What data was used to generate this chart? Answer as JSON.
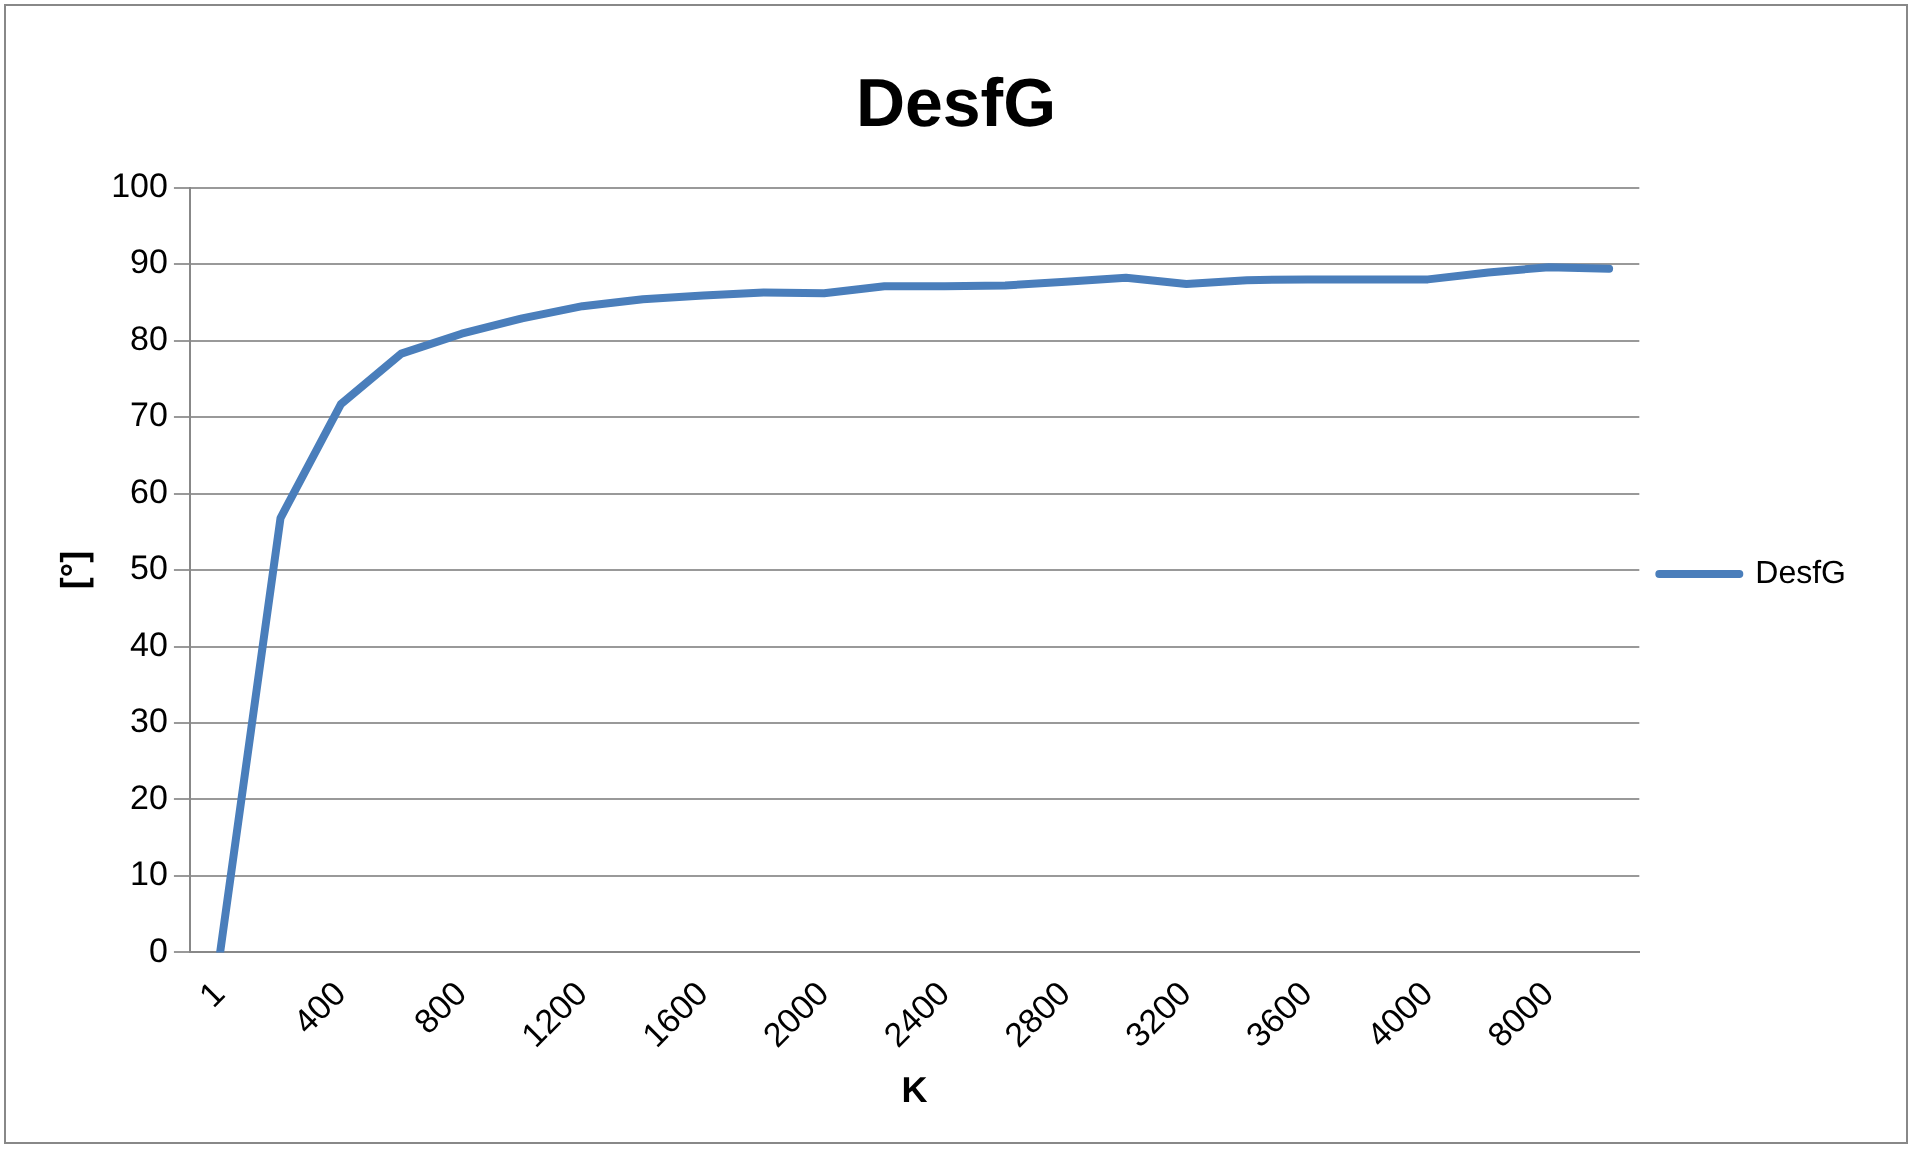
{
  "chart_data": {
    "type": "line",
    "title": "DesfG",
    "xlabel": "K",
    "ylabel": "[°]",
    "categories": [
      "1",
      null,
      "400",
      null,
      "800",
      null,
      "1200",
      null,
      "1600",
      null,
      "2000",
      null,
      "2400",
      null,
      "2800",
      null,
      "3200",
      null,
      "3600",
      null,
      "4000",
      null,
      "8000",
      null
    ],
    "series": [
      {
        "name": "DesfG",
        "color": "#4a7ebb",
        "values": [
          0,
          56.8,
          71.7,
          78.3,
          80.9,
          82.9,
          84.5,
          85.4,
          85.9,
          86.3,
          86.2,
          87.1,
          87.1,
          87.2,
          87.7,
          88.2,
          87.4,
          87.9,
          88,
          88,
          88,
          88.9,
          89.6,
          89.4
        ]
      }
    ],
    "ylim": [
      0,
      100
    ],
    "yticks": [
      0,
      10,
      20,
      30,
      40,
      50,
      60,
      70,
      80,
      90,
      100
    ],
    "grid": "y",
    "legend": "right",
    "marker": "none",
    "line_style": "solid"
  }
}
